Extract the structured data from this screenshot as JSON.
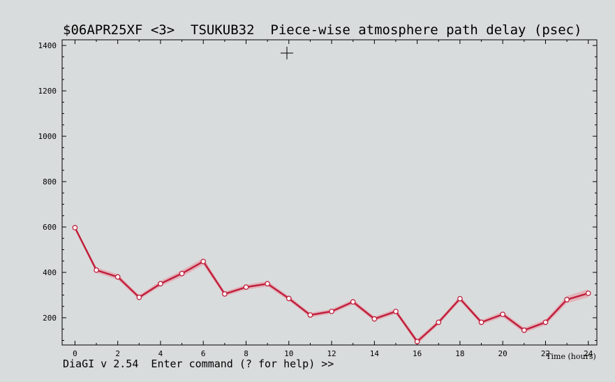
{
  "window": {
    "title": "$06APR25XF <3>  TSUKUB32  Piece-wise atmosphere path delay (psec)"
  },
  "status_bar": {
    "prompt": "DiaGI v 2.54  Enter command (? for help) >>"
  },
  "colors": {
    "series": "#c0203c",
    "band": "#e4a6b0",
    "marker_fill": "#ffffff",
    "background": "#d9dcdc"
  },
  "cursor": {
    "icon": "crosshair-cursor-icon"
  },
  "chart_data": {
    "type": "line",
    "title": "$06APR25XF <3>  TSUKUB32  Piece-wise atmosphere path delay (psec)",
    "xlabel": "Time (hours)",
    "ylabel": "",
    "xlim": [
      -0.6,
      24.4
    ],
    "ylim": [
      80,
      1425
    ],
    "xticks": [
      0,
      2,
      4,
      6,
      8,
      10,
      12,
      14,
      16,
      18,
      20,
      22,
      24
    ],
    "yticks": [
      200,
      400,
      600,
      800,
      1000,
      1200,
      1400
    ],
    "grid": false,
    "legend": "none",
    "series": [
      {
        "x": [
          0,
          1,
          2,
          3,
          4,
          5,
          6,
          7,
          8,
          9,
          10,
          11,
          12,
          13,
          14,
          15,
          16,
          17,
          18,
          19,
          20,
          21,
          22,
          23,
          24
        ],
        "y": [
          597,
          410,
          380,
          290,
          350,
          395,
          448,
          305,
          335,
          350,
          285,
          212,
          228,
          270,
          195,
          228,
          95,
          180,
          284,
          180,
          215,
          145,
          180,
          280,
          308
        ],
        "error": [
          6,
          12,
          12,
          10,
          12,
          14,
          15,
          10,
          11,
          12,
          10,
          10,
          10,
          11,
          10,
          11,
          12,
          10,
          11,
          10,
          12,
          12,
          12,
          16,
          18
        ]
      }
    ]
  }
}
